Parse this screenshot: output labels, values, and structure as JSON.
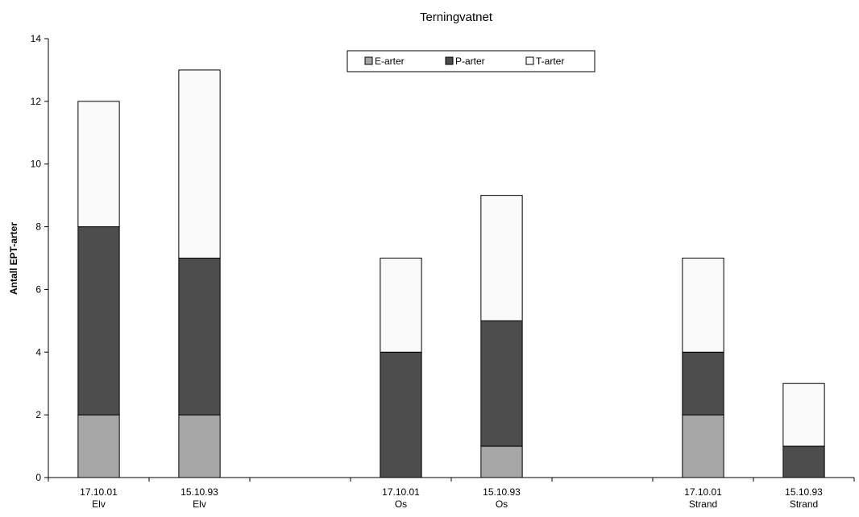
{
  "chart_data": {
    "type": "bar",
    "stacked": true,
    "title": "Terningvatnet",
    "xlabel": "",
    "ylabel": "Antall EPT-arter",
    "ylim": [
      0,
      14
    ],
    "yticks": [
      0,
      2,
      4,
      6,
      8,
      10,
      12,
      14
    ],
    "grid": false,
    "legend_position": "top-center",
    "categories": [
      {
        "line1": "17.10.01",
        "line2": "Elv"
      },
      {
        "line1": "15.10.93",
        "line2": "Elv"
      },
      {
        "line1": "",
        "line2": ""
      },
      {
        "line1": "17.10.01",
        "line2": "Os"
      },
      {
        "line1": "15.10.93",
        "line2": "Os"
      },
      {
        "line1": "",
        "line2": ""
      },
      {
        "line1": "17.10.01",
        "line2": "Strand"
      },
      {
        "line1": "15.10.93",
        "line2": "Strand"
      }
    ],
    "series": [
      {
        "name": "E-arter",
        "color": "#a6a6a6",
        "values": [
          2,
          2,
          0,
          0,
          1,
          0,
          2,
          0
        ]
      },
      {
        "name": "P-arter",
        "color": "#4d4d4d",
        "values": [
          6,
          5,
          0,
          4,
          4,
          0,
          2,
          1
        ]
      },
      {
        "name": "T-arter",
        "color": "#fafafa",
        "values": [
          4,
          6,
          0,
          3,
          4,
          0,
          3,
          2
        ]
      }
    ]
  }
}
